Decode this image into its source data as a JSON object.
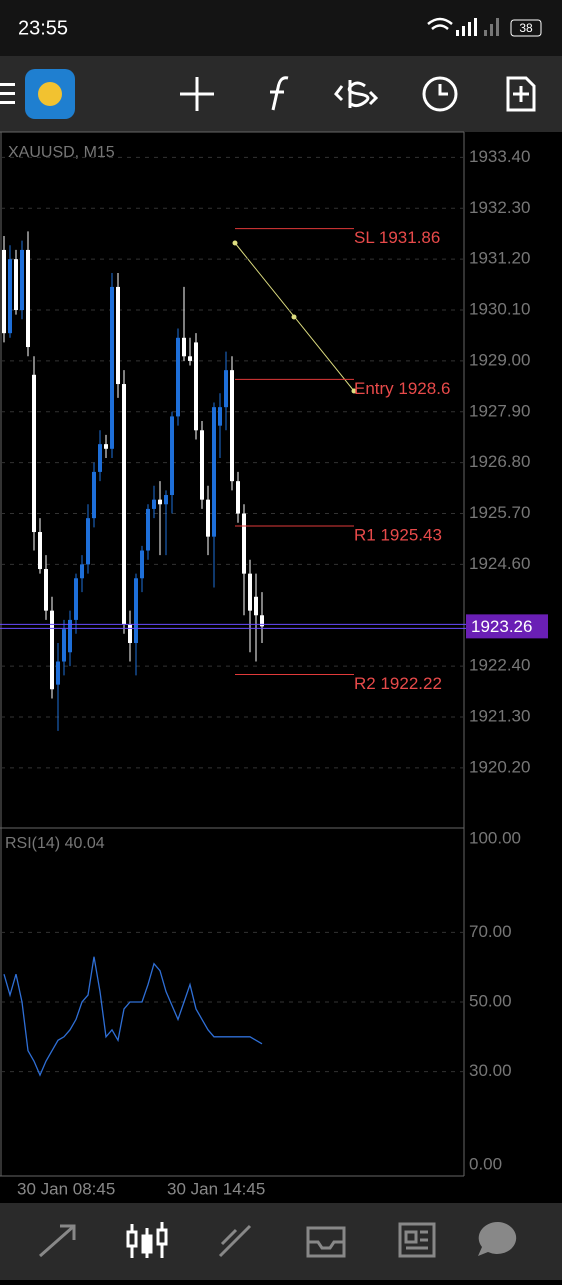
{
  "status_bar": {
    "time": "23:55",
    "battery": "38"
  },
  "chart_data": {
    "type": "candlestick",
    "title": "XAUUSD, M15",
    "open": [
      1931.4,
      1929.6,
      1931.2,
      1930.1,
      1931.4,
      1928.7,
      1925.3,
      1924.5,
      1923.6,
      1922.0,
      1922.5,
      1922.7,
      1923.4,
      1924.3,
      1924.6,
      1925.6,
      1926.6,
      1927.2,
      1927.1,
      1930.6,
      1928.5,
      1923.3,
      1922.9,
      1924.3,
      1924.9,
      1925.8,
      1926.0,
      1925.9,
      1926.1,
      1927.8,
      1929.5,
      1929.1,
      1929.4,
      1927.5,
      1926.0,
      1925.2,
      1927.6,
      1928.0,
      1928.8,
      1926.4,
      1925.7,
      1924.4,
      1923.9,
      1923.5
    ],
    "high": [
      1931.7,
      1931.5,
      1931.4,
      1931.6,
      1931.8,
      1929.1,
      1925.6,
      1924.8,
      1923.9,
      1922.9,
      1923.4,
      1923.6,
      1924.4,
      1924.8,
      1925.9,
      1926.8,
      1927.5,
      1927.4,
      1930.9,
      1930.9,
      1928.8,
      1923.6,
      1924.4,
      1925.0,
      1925.9,
      1926.3,
      1926.4,
      1926.2,
      1927.9,
      1929.7,
      1930.6,
      1929.5,
      1929.6,
      1927.7,
      1926.3,
      1928.1,
      1928.3,
      1929.2,
      1929.1,
      1926.6,
      1925.9,
      1924.7,
      1924.4,
      1924.0
    ],
    "low": [
      1929.4,
      1929.5,
      1930.0,
      1929.9,
      1929.1,
      1924.9,
      1924.4,
      1923.4,
      1921.7,
      1921.0,
      1922.2,
      1922.4,
      1923.1,
      1924.0,
      1924.4,
      1925.4,
      1926.4,
      1926.9,
      1926.9,
      1928.2,
      1923.1,
      1922.5,
      1922.2,
      1924.0,
      1924.7,
      1925.6,
      1924.8,
      1924.8,
      1925.7,
      1927.6,
      1929.0,
      1928.9,
      1927.3,
      1925.8,
      1924.8,
      1924.1,
      1926.9,
      1927.5,
      1926.2,
      1925.5,
      1923.5,
      1922.7,
      1922.5,
      1922.9
    ],
    "close": [
      1929.6,
      1931.2,
      1930.1,
      1931.4,
      1929.3,
      1925.3,
      1924.5,
      1923.6,
      1921.9,
      1922.5,
      1923.2,
      1923.4,
      1924.3,
      1924.6,
      1925.6,
      1926.6,
      1927.2,
      1927.1,
      1930.6,
      1928.5,
      1923.3,
      1922.9,
      1924.3,
      1924.9,
      1925.8,
      1926.0,
      1925.9,
      1926.1,
      1927.8,
      1929.5,
      1929.1,
      1929.0,
      1927.5,
      1926.0,
      1925.2,
      1928.0,
      1928.0,
      1928.8,
      1926.4,
      1925.7,
      1924.4,
      1923.6,
      1923.5,
      1923.26
    ],
    "up_color": "#1e6fd9",
    "down_color": "#ffffff",
    "ylim": [
      1933.95,
      1918.9
    ],
    "yticks": [
      {
        "value": 1933.4,
        "label": "1933.40"
      },
      {
        "value": 1932.3,
        "label": "1932.30"
      },
      {
        "value": 1931.2,
        "label": "1931.20"
      },
      {
        "value": 1930.1,
        "label": "1930.10"
      },
      {
        "value": 1929.0,
        "label": "1929.00"
      },
      {
        "value": 1927.9,
        "label": "1927.90"
      },
      {
        "value": 1926.8,
        "label": "1926.80"
      },
      {
        "value": 1925.7,
        "label": "1925.70"
      },
      {
        "value": 1924.6,
        "label": "1924.60"
      },
      {
        "value": 1922.4,
        "label": "1922.40"
      },
      {
        "value": 1921.3,
        "label": "1921.30"
      },
      {
        "value": 1920.2,
        "label": "1920.20"
      }
    ],
    "current_price": {
      "value": 1923.26,
      "label": "1923.26"
    },
    "levels": [
      {
        "label": "SL 1931.86",
        "value": 1931.86
      },
      {
        "label": "Entry 1928.6",
        "value": 1928.6
      },
      {
        "label": "R1 1925.43",
        "value": 1925.43
      },
      {
        "label": "R2 1922.22",
        "value": 1922.22
      }
    ],
    "x_labels": [
      "30 Jan 08:45",
      "30 Jan 14:45"
    ]
  },
  "rsi": {
    "type": "line",
    "title": "RSI(14) 40.04",
    "color": "#2f6fd6",
    "values": [
      58,
      52,
      58,
      50,
      36,
      33,
      29,
      33,
      36,
      39,
      40,
      42,
      45,
      50,
      52,
      63,
      53,
      40,
      42,
      39,
      48,
      50,
      50,
      50,
      55,
      61,
      59,
      53,
      49,
      45,
      50,
      55,
      48,
      45,
      42,
      40,
      40,
      40,
      40,
      40,
      40,
      40,
      39,
      38
    ],
    "ylim": [
      0,
      100
    ],
    "yticks": [
      {
        "value": 100,
        "label": "100.00"
      },
      {
        "value": 70,
        "label": "70.00"
      },
      {
        "value": 50,
        "label": "50.00"
      },
      {
        "value": 30,
        "label": "30.00"
      },
      {
        "value": 0,
        "label": "0.00"
      }
    ]
  }
}
